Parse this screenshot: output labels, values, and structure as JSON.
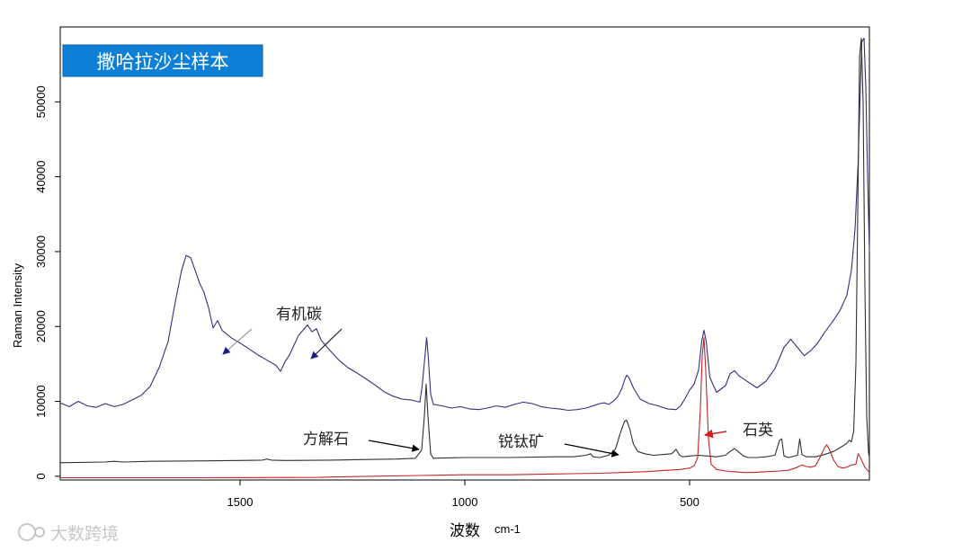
{
  "banner": {
    "title": "撒哈拉沙尘样本",
    "color": "#0e7fd6"
  },
  "watermark": {
    "text": "大数跨境"
  },
  "chart_data": {
    "type": "line",
    "xlabel": "波数",
    "xlabel_unit": "cm-1",
    "ylabel": "Raman Intensity",
    "xlim": [
      1900,
      100
    ],
    "ylim": [
      -500,
      60000
    ],
    "x_ticks": [
      1500,
      1000,
      500
    ],
    "y_ticks": [
      0,
      10000,
      20000,
      30000,
      40000,
      50000
    ],
    "grid": false,
    "series": [
      {
        "color": "#303080",
        "points": [
          [
            1900,
            9800
          ],
          [
            1880,
            9300
          ],
          [
            1860,
            10000
          ],
          [
            1840,
            9400
          ],
          [
            1820,
            9200
          ],
          [
            1800,
            9700
          ],
          [
            1780,
            9300
          ],
          [
            1760,
            9600
          ],
          [
            1740,
            10200
          ],
          [
            1720,
            10800
          ],
          [
            1700,
            12000
          ],
          [
            1680,
            14500
          ],
          [
            1660,
            18000
          ],
          [
            1645,
            23000
          ],
          [
            1630,
            27500
          ],
          [
            1620,
            29500
          ],
          [
            1610,
            29200
          ],
          [
            1600,
            27500
          ],
          [
            1590,
            25800
          ],
          [
            1580,
            24500
          ],
          [
            1570,
            22500
          ],
          [
            1560,
            19800
          ],
          [
            1550,
            20800
          ],
          [
            1540,
            19500
          ],
          [
            1520,
            18500
          ],
          [
            1500,
            17800
          ],
          [
            1480,
            17000
          ],
          [
            1460,
            16200
          ],
          [
            1440,
            15500
          ],
          [
            1420,
            14800
          ],
          [
            1410,
            14000
          ],
          [
            1400,
            15300
          ],
          [
            1390,
            16200
          ],
          [
            1380,
            17500
          ],
          [
            1370,
            18800
          ],
          [
            1360,
            19500
          ],
          [
            1350,
            20200
          ],
          [
            1340,
            19300
          ],
          [
            1330,
            19700
          ],
          [
            1320,
            18200
          ],
          [
            1300,
            16800
          ],
          [
            1280,
            15500
          ],
          [
            1260,
            14500
          ],
          [
            1240,
            13800
          ],
          [
            1220,
            13000
          ],
          [
            1200,
            12200
          ],
          [
            1180,
            11300
          ],
          [
            1160,
            10700
          ],
          [
            1140,
            10300
          ],
          [
            1120,
            10200
          ],
          [
            1100,
            9900
          ],
          [
            1095,
            12000
          ],
          [
            1088,
            16500
          ],
          [
            1085,
            18500
          ],
          [
            1082,
            16500
          ],
          [
            1076,
            11000
          ],
          [
            1070,
            9600
          ],
          [
            1050,
            9400
          ],
          [
            1030,
            9100
          ],
          [
            1010,
            9300
          ],
          [
            990,
            9000
          ],
          [
            970,
            8900
          ],
          [
            950,
            9100
          ],
          [
            930,
            9400
          ],
          [
            910,
            9200
          ],
          [
            890,
            9600
          ],
          [
            870,
            9900
          ],
          [
            850,
            9700
          ],
          [
            830,
            9300
          ],
          [
            810,
            9100
          ],
          [
            790,
            9000
          ],
          [
            770,
            8800
          ],
          [
            750,
            8900
          ],
          [
            730,
            9100
          ],
          [
            710,
            9500
          ],
          [
            700,
            9700
          ],
          [
            690,
            9800
          ],
          [
            680,
            9600
          ],
          [
            670,
            10000
          ],
          [
            660,
            10600
          ],
          [
            650,
            11800
          ],
          [
            645,
            12800
          ],
          [
            640,
            13500
          ],
          [
            635,
            13200
          ],
          [
            625,
            11800
          ],
          [
            610,
            10300
          ],
          [
            590,
            9700
          ],
          [
            570,
            9400
          ],
          [
            550,
            9000
          ],
          [
            530,
            8900
          ],
          [
            520,
            9400
          ],
          [
            510,
            10400
          ],
          [
            500,
            11500
          ],
          [
            490,
            12300
          ],
          [
            480,
            14200
          ],
          [
            473,
            18000
          ],
          [
            468,
            19500
          ],
          [
            463,
            18000
          ],
          [
            455,
            13200
          ],
          [
            440,
            11200
          ],
          [
            420,
            12100
          ],
          [
            410,
            13700
          ],
          [
            400,
            14100
          ],
          [
            390,
            13400
          ],
          [
            370,
            12600
          ],
          [
            350,
            11800
          ],
          [
            330,
            12700
          ],
          [
            310,
            14400
          ],
          [
            290,
            17200
          ],
          [
            275,
            18300
          ],
          [
            260,
            17200
          ],
          [
            245,
            16100
          ],
          [
            230,
            16800
          ],
          [
            215,
            17800
          ],
          [
            200,
            19200
          ],
          [
            180,
            20800
          ],
          [
            165,
            22200
          ],
          [
            150,
            24200
          ],
          [
            140,
            27500
          ],
          [
            132,
            33000
          ],
          [
            125,
            42000
          ],
          [
            120,
            52000
          ],
          [
            117,
            58000
          ],
          [
            112,
            58500
          ],
          [
            108,
            52000
          ],
          [
            104,
            40000
          ],
          [
            100,
            30000
          ]
        ]
      },
      {
        "color": "#303030",
        "points": [
          [
            1900,
            1800
          ],
          [
            1800,
            1900
          ],
          [
            1780,
            2000
          ],
          [
            1760,
            1900
          ],
          [
            1700,
            2000
          ],
          [
            1600,
            2050
          ],
          [
            1500,
            2100
          ],
          [
            1450,
            2150
          ],
          [
            1440,
            2300
          ],
          [
            1430,
            2150
          ],
          [
            1400,
            2100
          ],
          [
            1300,
            2150
          ],
          [
            1200,
            2250
          ],
          [
            1150,
            2300
          ],
          [
            1110,
            2400
          ],
          [
            1096,
            3500
          ],
          [
            1090,
            8000
          ],
          [
            1086,
            12300
          ],
          [
            1082,
            8000
          ],
          [
            1076,
            3000
          ],
          [
            1070,
            2400
          ],
          [
            1000,
            2500
          ],
          [
            900,
            2500
          ],
          [
            800,
            2600
          ],
          [
            760,
            2600
          ],
          [
            730,
            2800
          ],
          [
            720,
            3000
          ],
          [
            715,
            2600
          ],
          [
            700,
            2500
          ],
          [
            680,
            2800
          ],
          [
            665,
            3600
          ],
          [
            655,
            5600
          ],
          [
            645,
            7300
          ],
          [
            640,
            7500
          ],
          [
            633,
            6300
          ],
          [
            625,
            4300
          ],
          [
            615,
            3300
          ],
          [
            600,
            3000
          ],
          [
            580,
            2800
          ],
          [
            560,
            2900
          ],
          [
            540,
            3000
          ],
          [
            530,
            3600
          ],
          [
            522,
            2800
          ],
          [
            515,
            2600
          ],
          [
            500,
            2700
          ],
          [
            480,
            2800
          ],
          [
            460,
            2700
          ],
          [
            440,
            2600
          ],
          [
            420,
            2800
          ],
          [
            410,
            3300
          ],
          [
            400,
            3700
          ],
          [
            390,
            3200
          ],
          [
            380,
            2700
          ],
          [
            370,
            2500
          ],
          [
            350,
            2500
          ],
          [
            330,
            2600
          ],
          [
            310,
            2800
          ],
          [
            300,
            4800
          ],
          [
            295,
            5000
          ],
          [
            290,
            2700
          ],
          [
            280,
            2500
          ],
          [
            260,
            2800
          ],
          [
            255,
            5000
          ],
          [
            250,
            2900
          ],
          [
            240,
            2600
          ],
          [
            220,
            2600
          ],
          [
            200,
            2900
          ],
          [
            180,
            3300
          ],
          [
            160,
            4000
          ],
          [
            150,
            4400
          ],
          [
            145,
            4800
          ],
          [
            140,
            4600
          ],
          [
            135,
            6000
          ],
          [
            130,
            15000
          ],
          [
            125,
            40000
          ],
          [
            122,
            56000
          ],
          [
            118,
            58500
          ],
          [
            114,
            50000
          ],
          [
            110,
            25000
          ],
          [
            106,
            8000
          ],
          [
            102,
            3200
          ],
          [
            100,
            2500
          ]
        ]
      },
      {
        "color": "#c02525",
        "points": [
          [
            1900,
            -200
          ],
          [
            1600,
            -200
          ],
          [
            1320,
            -150
          ],
          [
            1300,
            -100
          ],
          [
            1100,
            100
          ],
          [
            1050,
            150
          ],
          [
            1000,
            200
          ],
          [
            900,
            200
          ],
          [
            800,
            300
          ],
          [
            700,
            400
          ],
          [
            650,
            500
          ],
          [
            600,
            600
          ],
          [
            550,
            800
          ],
          [
            520,
            900
          ],
          [
            500,
            1100
          ],
          [
            490,
            1400
          ],
          [
            482,
            2500
          ],
          [
            476,
            9000
          ],
          [
            472,
            16000
          ],
          [
            468,
            18500
          ],
          [
            464,
            14000
          ],
          [
            458,
            5000
          ],
          [
            452,
            1600
          ],
          [
            440,
            900
          ],
          [
            420,
            700
          ],
          [
            400,
            600
          ],
          [
            380,
            500
          ],
          [
            360,
            500
          ],
          [
            330,
            600
          ],
          [
            300,
            700
          ],
          [
            280,
            800
          ],
          [
            260,
            1200
          ],
          [
            250,
            1500
          ],
          [
            240,
            1300
          ],
          [
            230,
            1200
          ],
          [
            220,
            1400
          ],
          [
            210,
            2500
          ],
          [
            200,
            3800
          ],
          [
            195,
            4200
          ],
          [
            190,
            3700
          ],
          [
            180,
            2200
          ],
          [
            170,
            1300
          ],
          [
            160,
            1100
          ],
          [
            150,
            1200
          ],
          [
            140,
            1500
          ],
          [
            130,
            1600
          ],
          [
            125,
            3000
          ],
          [
            120,
            2500
          ],
          [
            115,
            1800
          ],
          [
            110,
            1200
          ],
          [
            100,
            500
          ]
        ]
      }
    ],
    "annotations": [
      {
        "label": "有机碳",
        "arrow_color": "#1a1a8c"
      },
      {
        "label": "方解石",
        "arrow_color": "#000000"
      },
      {
        "label": "锐钛矿",
        "arrow_color": "#000000"
      },
      {
        "label": "石英",
        "arrow_color": "#d22020"
      }
    ]
  }
}
